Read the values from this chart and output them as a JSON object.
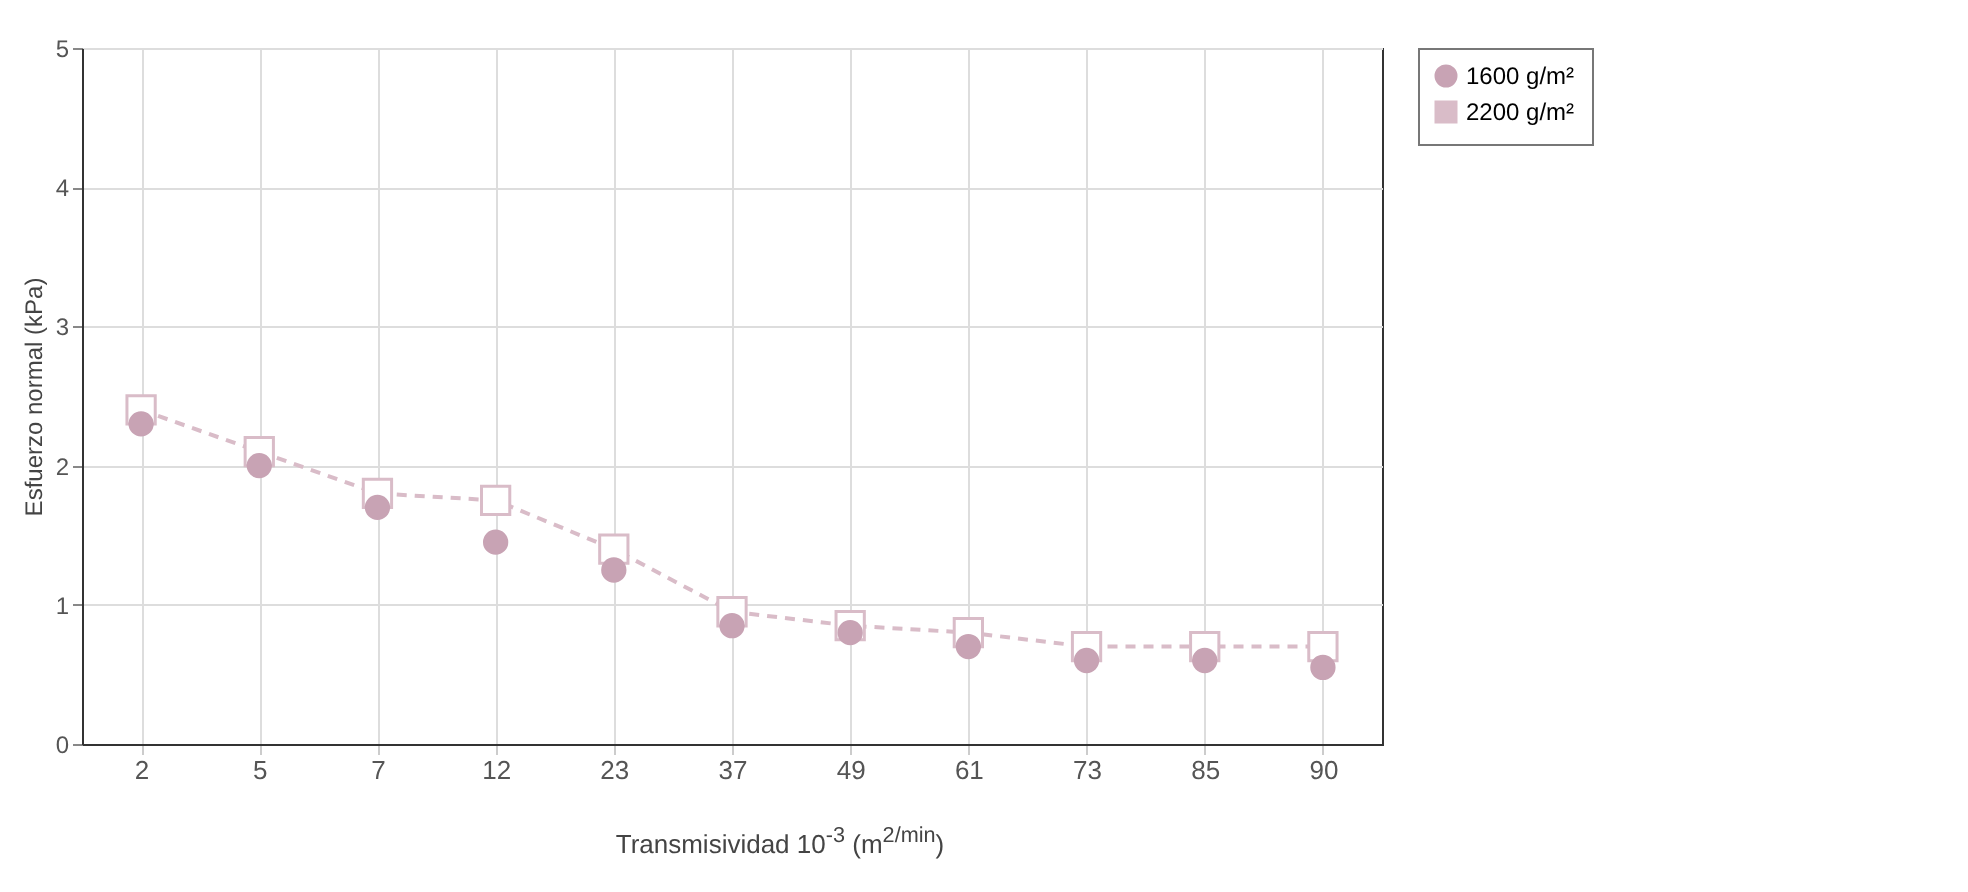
{
  "chart_data": {
    "type": "scatter",
    "xlabel": "Transmisividad 10$^{-3}$ (m$^{2/min}$)",
    "ylabel": "Esfuerzo normal (kPa)",
    "categories": [
      "2",
      "5",
      "7",
      "12",
      "23",
      "37",
      "49",
      "61",
      "73",
      "85",
      "90"
    ],
    "series": [
      {
        "name": "1600 g/m²",
        "marker": "circle",
        "color": "#c8a3b4",
        "values": [
          2.3,
          2.0,
          1.7,
          1.45,
          1.25,
          0.85,
          0.8,
          0.7,
          0.6,
          0.6,
          0.55
        ]
      },
      {
        "name": "2200 g/m²",
        "type": "line",
        "marker": "square",
        "line_style": "dashed",
        "color": "#d9bcc8",
        "values": [
          2.4,
          2.1,
          1.8,
          1.75,
          1.4,
          0.95,
          0.85,
          0.8,
          0.7,
          0.7,
          0.7
        ]
      }
    ],
    "ylim": [
      0,
      5
    ],
    "yticks": [
      0,
      1,
      2,
      3,
      4,
      5
    ],
    "grid": true,
    "legend": "right"
  }
}
